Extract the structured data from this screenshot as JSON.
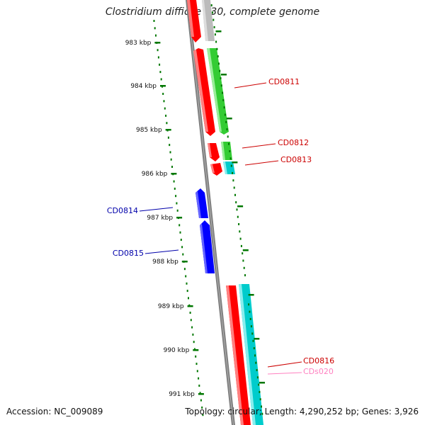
{
  "title": "Clostridium difficile 630, complete genome",
  "footer": {
    "accession": "Accession: NC_009089",
    "summary": "Topology: circular; Length: 4,290,252 bp; Genes: 3,926"
  },
  "scale_ticks": [
    "983 kbp",
    "984 kbp",
    "985 kbp",
    "986 kbp",
    "987 kbp",
    "988 kbp",
    "989 kbp",
    "990 kbp",
    "991 kbp"
  ],
  "labels": {
    "cd0811": "CD0811",
    "cd0812": "CD0812",
    "cd0813": "CD0813",
    "cd0814": "CD0814",
    "cd0815": "CD0815",
    "cd0816": "CD0816",
    "cds020": "CDs020"
  },
  "colors": {
    "forward_gene": "#ff0000",
    "forward_cds": "#33cc33",
    "forward_rna": "#00cccc",
    "reverse_cds": "#0000ff",
    "grey_feature": "#bbbbbb",
    "backbone": "#808080",
    "tick": "#007700",
    "label_red": "#cc0000",
    "label_blue": "#0000aa",
    "label_pink": "#ff80c0"
  }
}
